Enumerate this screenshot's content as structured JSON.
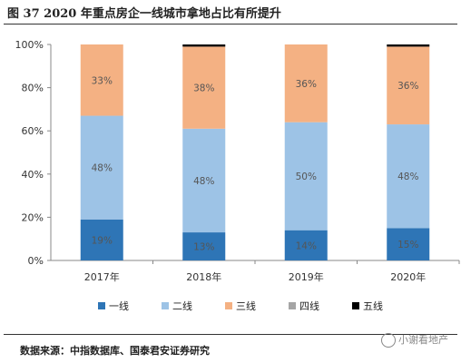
{
  "figure": {
    "title": "图 37 2020 年重点房企一线城市拿地占比有所提升",
    "source": "数据来源：中指数据库、国泰君安证券研究",
    "watermark": "小谢看地产"
  },
  "chart_data": {
    "type": "bar",
    "stacked": true,
    "categories": [
      "2017年",
      "2018年",
      "2019年",
      "2020年"
    ],
    "series": [
      {
        "name": "一线",
        "color": "#2E75B6",
        "values": [
          19,
          13,
          14,
          15
        ],
        "labels": [
          "19%",
          "13%",
          "14%",
          "15%"
        ]
      },
      {
        "name": "二线",
        "color": "#9DC3E6",
        "values": [
          48,
          48,
          50,
          48
        ],
        "labels": [
          "48%",
          "48%",
          "50%",
          "48%"
        ]
      },
      {
        "name": "三线",
        "color": "#F4B183",
        "values": [
          33,
          38,
          36,
          36
        ],
        "labels": [
          "33%",
          "38%",
          "36%",
          "36%"
        ]
      },
      {
        "name": "四线",
        "color": "#A5A5A5",
        "values": [
          0,
          0,
          0,
          0
        ],
        "labels": [
          "",
          "",
          "",
          ""
        ]
      },
      {
        "name": "五线",
        "color": "#000000",
        "values": [
          0,
          1,
          0,
          1
        ],
        "labels": [
          "",
          "",
          "",
          ""
        ]
      }
    ],
    "yticks": [
      "0%",
      "20%",
      "40%",
      "60%",
      "80%",
      "100%"
    ],
    "ylim": [
      0,
      100
    ],
    "grid": false,
    "legend": "bottom"
  }
}
